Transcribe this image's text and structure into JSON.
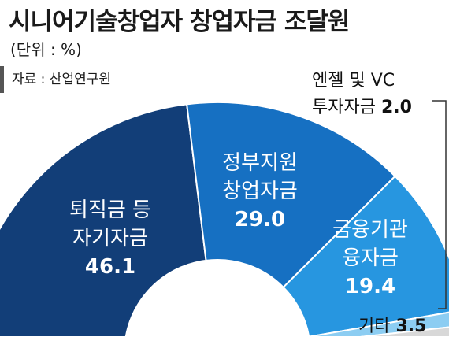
{
  "title": "시니어기술창업자 창업자금 조달원",
  "unit_label": "(단위 : %)",
  "source_label": "자료 : 산업연구원",
  "chart_data": {
    "type": "pie",
    "variant": "half-donut",
    "start": "left",
    "direction": "clockwise",
    "slices": [
      {
        "label_lines": [
          "퇴직금 등",
          "자기자금"
        ],
        "value": 46.1,
        "color": "#123e78"
      },
      {
        "label_lines": [
          "정부지원",
          "창업자금"
        ],
        "value": 29.0,
        "color": "#1670c2"
      },
      {
        "label_lines": [
          "금융기관",
          "융자금"
        ],
        "value": 19.4,
        "color": "#2796e0"
      },
      {
        "label_lines": [
          "엔젤 및 VC",
          "투자자금"
        ],
        "value": 2.0,
        "color": "#8ccdf2"
      },
      {
        "label_lines": [
          "기타"
        ],
        "value": 3.5,
        "color": "#d8d8d8"
      }
    ],
    "value_format": "one-decimal"
  }
}
